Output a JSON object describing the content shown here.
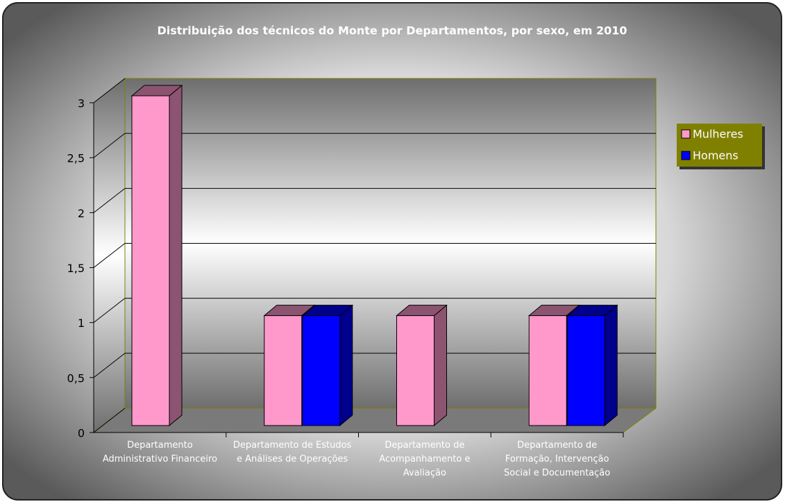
{
  "chart_data": {
    "type": "bar3d",
    "title": "Distribuição dos técnicos do Monte por Departamentos, por sexo, em 2010",
    "categories": [
      "Departamento Administrativo Financeiro",
      "Departamento de Estudos e Análises de Operações",
      "Departamento de Acompanhamento e Avaliação",
      "Departamento de Formação, Intervenção Social e Documentação"
    ],
    "series": [
      {
        "name": "Mulheres",
        "color": "#ff99cc",
        "values": [
          3,
          1,
          1,
          1
        ]
      },
      {
        "name": "Homens",
        "color": "#0000ff",
        "values": [
          null,
          1,
          null,
          1
        ]
      }
    ],
    "ylim": [
      0,
      3
    ],
    "yticks": [
      0,
      {
        "value": 0.5,
        "label": "0,5"
      },
      1,
      {
        "value": 1.5,
        "label": "1,5"
      },
      2,
      {
        "value": 2.5,
        "label": "2,5"
      },
      3
    ],
    "grid": true,
    "legend": "right"
  }
}
